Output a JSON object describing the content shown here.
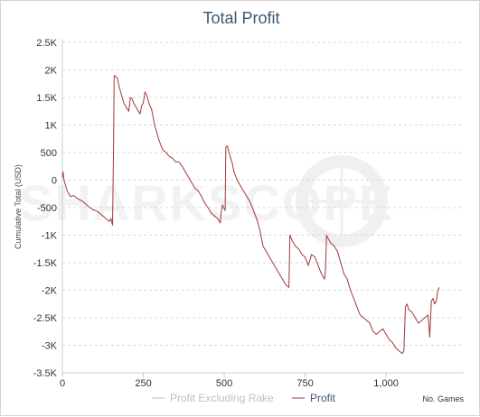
{
  "chart_data": {
    "type": "line",
    "title": "Total Profit",
    "ylabel": "Cumulative Total (USD)",
    "xlabel": "No. Games",
    "watermark": "SHARKSCOPE",
    "xlim": [
      0,
      1240
    ],
    "ylim": [
      -3500,
      2500
    ],
    "x_ticks": [
      0,
      250,
      500,
      750,
      1000
    ],
    "x_tick_labels": [
      "0",
      "250",
      "500",
      "750",
      "1,000"
    ],
    "y_ticks": [
      2500,
      2000,
      1500,
      1000,
      500,
      0,
      -500,
      -1000,
      -1500,
      -2000,
      -2500,
      -3000,
      -3500
    ],
    "y_tick_labels": [
      "2.5K",
      "2K",
      "1.5K",
      "1K",
      "500",
      "0",
      "-500",
      "-1K",
      "-1.5K",
      "-2K",
      "-2.5K",
      "-3K",
      "-3.5K"
    ],
    "grid": true,
    "legend_position": "bottom-center",
    "series": [
      {
        "name": "Profit Excluding Rake",
        "color": "#bbbbbb",
        "visible": false,
        "points": []
      },
      {
        "name": "Profit",
        "color": "#a0393a",
        "visible": true,
        "points": [
          [
            0,
            50
          ],
          [
            2,
            150
          ],
          [
            5,
            0
          ],
          [
            10,
            -100
          ],
          [
            15,
            -200
          ],
          [
            20,
            -250
          ],
          [
            25,
            -300
          ],
          [
            35,
            -280
          ],
          [
            45,
            -330
          ],
          [
            55,
            -360
          ],
          [
            65,
            -400
          ],
          [
            75,
            -450
          ],
          [
            85,
            -500
          ],
          [
            95,
            -540
          ],
          [
            105,
            -560
          ],
          [
            115,
            -600
          ],
          [
            125,
            -650
          ],
          [
            135,
            -700
          ],
          [
            145,
            -750
          ],
          [
            150,
            -700
          ],
          [
            155,
            -820
          ],
          [
            158,
            600
          ],
          [
            160,
            1900
          ],
          [
            165,
            1880
          ],
          [
            170,
            1850
          ],
          [
            175,
            1700
          ],
          [
            180,
            1600
          ],
          [
            185,
            1500
          ],
          [
            190,
            1400
          ],
          [
            195,
            1350
          ],
          [
            200,
            1300
          ],
          [
            205,
            1250
          ],
          [
            210,
            1500
          ],
          [
            215,
            1480
          ],
          [
            220,
            1400
          ],
          [
            225,
            1350
          ],
          [
            230,
            1300
          ],
          [
            235,
            1250
          ],
          [
            240,
            1200
          ],
          [
            245,
            1350
          ],
          [
            250,
            1400
          ],
          [
            255,
            1600
          ],
          [
            260,
            1550
          ],
          [
            265,
            1450
          ],
          [
            270,
            1350
          ],
          [
            275,
            1300
          ],
          [
            280,
            1150
          ],
          [
            285,
            1000
          ],
          [
            290,
            900
          ],
          [
            300,
            700
          ],
          [
            310,
            550
          ],
          [
            320,
            500
          ],
          [
            330,
            430
          ],
          [
            340,
            400
          ],
          [
            350,
            330
          ],
          [
            360,
            330
          ],
          [
            370,
            250
          ],
          [
            380,
            150
          ],
          [
            390,
            50
          ],
          [
            400,
            -50
          ],
          [
            410,
            -150
          ],
          [
            420,
            -200
          ],
          [
            430,
            -300
          ],
          [
            440,
            -420
          ],
          [
            450,
            -500
          ],
          [
            460,
            -600
          ],
          [
            470,
            -650
          ],
          [
            480,
            -700
          ],
          [
            488,
            -780
          ],
          [
            490,
            -600
          ],
          [
            495,
            -450
          ],
          [
            500,
            -520
          ],
          [
            503,
            -550
          ],
          [
            505,
            600
          ],
          [
            510,
            620
          ],
          [
            515,
            500
          ],
          [
            520,
            400
          ],
          [
            525,
            300
          ],
          [
            530,
            150
          ],
          [
            540,
            0
          ],
          [
            550,
            -100
          ],
          [
            560,
            -200
          ],
          [
            570,
            -300
          ],
          [
            580,
            -400
          ],
          [
            590,
            -550
          ],
          [
            600,
            -700
          ],
          [
            610,
            -900
          ],
          [
            615,
            -1050
          ],
          [
            620,
            -1200
          ],
          [
            630,
            -1300
          ],
          [
            640,
            -1400
          ],
          [
            650,
            -1500
          ],
          [
            660,
            -1600
          ],
          [
            670,
            -1700
          ],
          [
            680,
            -1800
          ],
          [
            690,
            -1900
          ],
          [
            700,
            -1950
          ],
          [
            703,
            -1000
          ],
          [
            710,
            -1100
          ],
          [
            720,
            -1200
          ],
          [
            730,
            -1250
          ],
          [
            740,
            -1350
          ],
          [
            750,
            -1400
          ],
          [
            760,
            -1550
          ],
          [
            770,
            -1350
          ],
          [
            780,
            -1400
          ],
          [
            790,
            -1550
          ],
          [
            800,
            -1700
          ],
          [
            810,
            -1800
          ],
          [
            813,
            -1650
          ],
          [
            816,
            -1000
          ],
          [
            820,
            -1050
          ],
          [
            830,
            -1150
          ],
          [
            840,
            -1200
          ],
          [
            850,
            -1300
          ],
          [
            860,
            -1500
          ],
          [
            870,
            -1700
          ],
          [
            880,
            -1800
          ],
          [
            890,
            -2000
          ],
          [
            900,
            -2150
          ],
          [
            910,
            -2300
          ],
          [
            920,
            -2450
          ],
          [
            930,
            -2500
          ],
          [
            940,
            -2550
          ],
          [
            950,
            -2600
          ],
          [
            960,
            -2750
          ],
          [
            970,
            -2800
          ],
          [
            980,
            -2750
          ],
          [
            990,
            -2700
          ],
          [
            1000,
            -2800
          ],
          [
            1010,
            -2900
          ],
          [
            1020,
            -2950
          ],
          [
            1030,
            -3050
          ],
          [
            1040,
            -3100
          ],
          [
            1050,
            -3150
          ],
          [
            1055,
            -3100
          ],
          [
            1060,
            -2300
          ],
          [
            1065,
            -2250
          ],
          [
            1070,
            -2350
          ],
          [
            1080,
            -2400
          ],
          [
            1090,
            -2500
          ],
          [
            1100,
            -2600
          ],
          [
            1110,
            -2550
          ],
          [
            1120,
            -2500
          ],
          [
            1130,
            -2450
          ],
          [
            1135,
            -2850
          ],
          [
            1140,
            -2200
          ],
          [
            1145,
            -2150
          ],
          [
            1150,
            -2250
          ],
          [
            1155,
            -2200
          ],
          [
            1160,
            -2000
          ],
          [
            1165,
            -1950
          ]
        ]
      }
    ]
  }
}
